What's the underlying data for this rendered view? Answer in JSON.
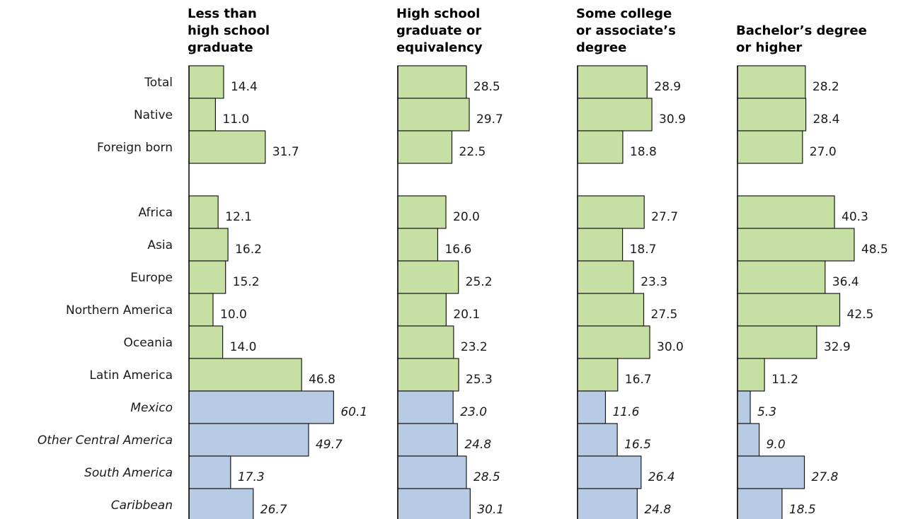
{
  "colors": {
    "primary_fill": "#c6e0a4",
    "subregion_fill": "#b8cbe4",
    "bar_stroke": "#1a1a1a",
    "axis": "#000000"
  },
  "chart_data": {
    "type": "bar",
    "orientation": "horizontal",
    "categories": [
      "Total",
      "Native",
      "Foreign born",
      "Africa",
      "Asia",
      "Europe",
      "Northern America",
      "Oceania",
      "Latin America",
      "Mexico",
      "Other Central America",
      "South America",
      "Caribbean"
    ],
    "subregion_categories": [
      "Mexico",
      "Other Central America",
      "South America",
      "Caribbean"
    ],
    "series": [
      {
        "title_lines": [
          "Less than",
          "high school",
          "graduate"
        ],
        "values": [
          14.4,
          11.0,
          31.7,
          12.1,
          16.2,
          15.2,
          10.0,
          14.0,
          46.8,
          60.1,
          49.7,
          17.3,
          26.7
        ]
      },
      {
        "title_lines": [
          "High school",
          "graduate or",
          "equivalency"
        ],
        "values": [
          28.5,
          29.7,
          22.5,
          20.0,
          16.6,
          25.2,
          20.1,
          23.2,
          25.3,
          23.0,
          24.8,
          28.5,
          30.1
        ]
      },
      {
        "title_lines": [
          "Some college",
          "or associate’s",
          "degree"
        ],
        "values": [
          28.9,
          30.9,
          18.8,
          27.7,
          18.7,
          23.3,
          27.5,
          30.0,
          16.7,
          11.6,
          16.5,
          26.4,
          24.8
        ]
      },
      {
        "title_lines": [
          "Bachelor’s degree",
          "or higher"
        ],
        "values": [
          28.2,
          28.4,
          27.0,
          40.3,
          48.5,
          36.4,
          42.5,
          32.9,
          11.2,
          5.3,
          9.0,
          27.8,
          18.5
        ]
      }
    ]
  }
}
